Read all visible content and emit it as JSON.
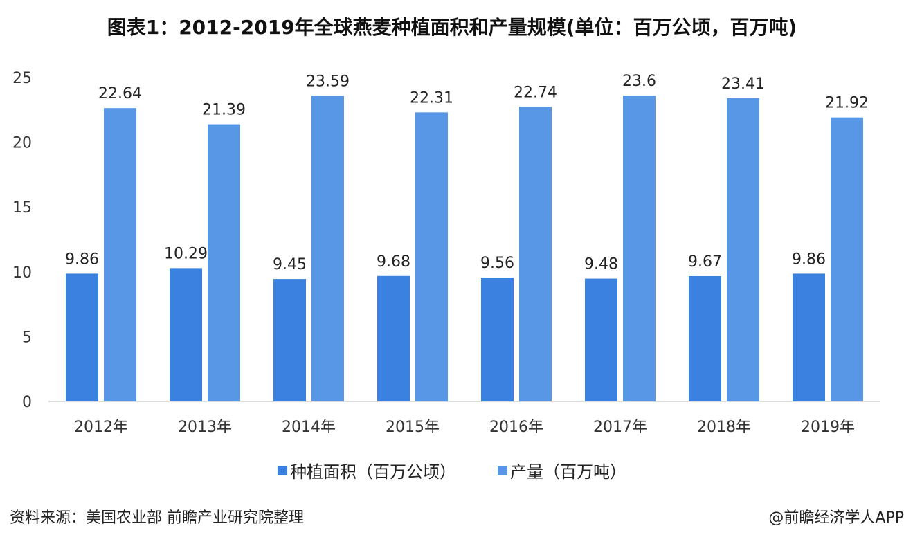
{
  "title": "图表1：2012-2019年全球燕麦种植面积和产量规模(单位：百万公顷，百万吨)",
  "source": "资料来源：美国农业部 前瞻产业研究院整理",
  "credit": "@前瞻经济学人APP",
  "chart_data": {
    "type": "bar",
    "title": "图表1：2012-2019年全球燕麦种植面积和产量规模(单位：百万公顷，百万吨)",
    "categories": [
      "2012年",
      "2013年",
      "2014年",
      "2015年",
      "2016年",
      "2017年",
      "2018年",
      "2019年"
    ],
    "series": [
      {
        "name": "种植面积（百万公顷）",
        "color": "#3b82e0",
        "values": [
          9.86,
          10.29,
          9.45,
          9.68,
          9.56,
          9.48,
          9.67,
          9.86
        ]
      },
      {
        "name": "产量（百万吨）",
        "color": "#5896e6",
        "values": [
          22.64,
          21.39,
          23.59,
          22.31,
          22.74,
          23.6,
          23.41,
          21.92
        ]
      }
    ],
    "ylim": [
      0,
      25
    ],
    "yticks": [
      0,
      5,
      10,
      15,
      20,
      25
    ],
    "grid": false,
    "legend": "bottom"
  }
}
